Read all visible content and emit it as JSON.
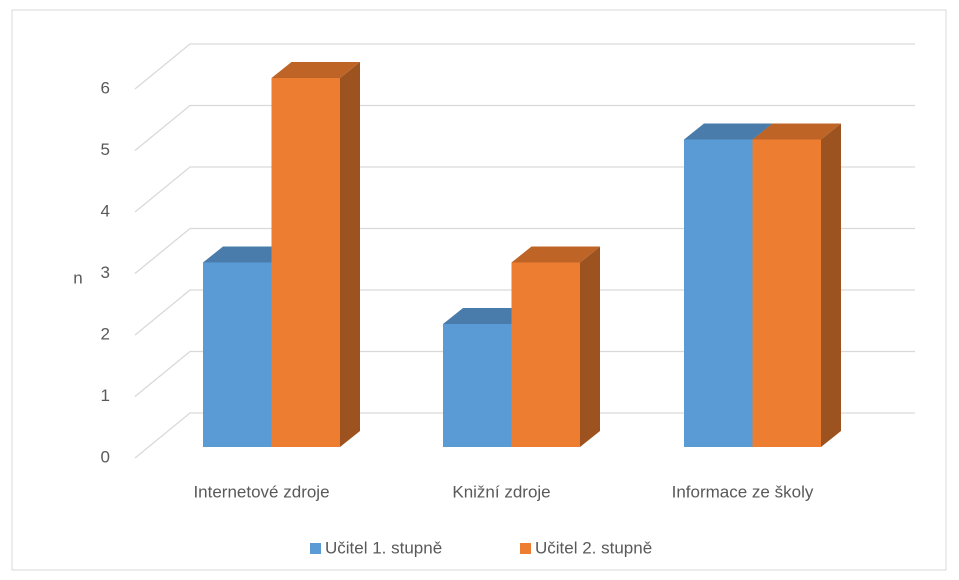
{
  "chart_data": {
    "type": "bar3d",
    "y_label": "n",
    "categories": [
      "Internetové zdroje",
      "Knižní zdroje",
      "Informace ze školy"
    ],
    "series": [
      {
        "name": "Učitel 1. stupně",
        "color": "#5b9bd5",
        "values": [
          3,
          2,
          5
        ]
      },
      {
        "name": "Učitel 2. stupně",
        "color": "#ed7d31",
        "values": [
          6,
          3,
          5
        ]
      }
    ],
    "ylim": [
      0,
      6
    ],
    "yticks": [
      0,
      1,
      2,
      3,
      4,
      5,
      6
    ],
    "grid": true,
    "legend": "bottom"
  }
}
